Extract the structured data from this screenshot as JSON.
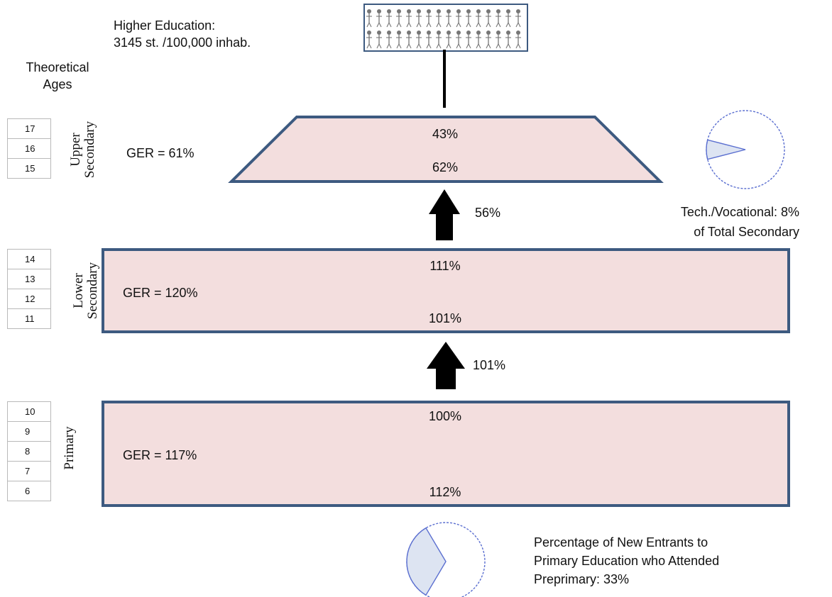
{
  "higher_education": {
    "line1": "Higher Education:",
    "line2": "3145 st. /100,000 inhab."
  },
  "theoretical_ages": {
    "line1": "Theoretical",
    "line2": "Ages"
  },
  "levels": {
    "upper": {
      "name_line1": "Upper",
      "name_line2": "Secondary",
      "ages": [
        "17",
        "16",
        "15"
      ],
      "ger": "GER = 61%",
      "top_value": "43%",
      "bottom_value": "62%"
    },
    "lower": {
      "name_line1": "Lower",
      "name_line2": "Secondary",
      "ages": [
        "14",
        "13",
        "12",
        "11"
      ],
      "ger": "GER = 120%",
      "top_value": "111%",
      "bottom_value": "101%"
    },
    "primary": {
      "name": "Primary",
      "ages": [
        "10",
        "9",
        "8",
        "7",
        "6"
      ],
      "ger": "GER = 117%",
      "top_value": "100%",
      "bottom_value": "112%"
    }
  },
  "transitions": {
    "lower_to_upper": "56%",
    "primary_to_lower": "101%"
  },
  "tech_vocational": {
    "line1": "Tech./Vocational: 8%",
    "line2": "of Total Secondary",
    "share": 0.08
  },
  "preprimary": {
    "line1": "Percentage of New Entrants to",
    "line2": "Primary Education who Attended",
    "line3": "Preprimary: 33%",
    "share": 0.33
  },
  "colors": {
    "box_fill": "#f3dede",
    "box_border": "#3d5a80",
    "pie_border": "#5b6fd0",
    "pie_fill": "#dde4f2"
  }
}
